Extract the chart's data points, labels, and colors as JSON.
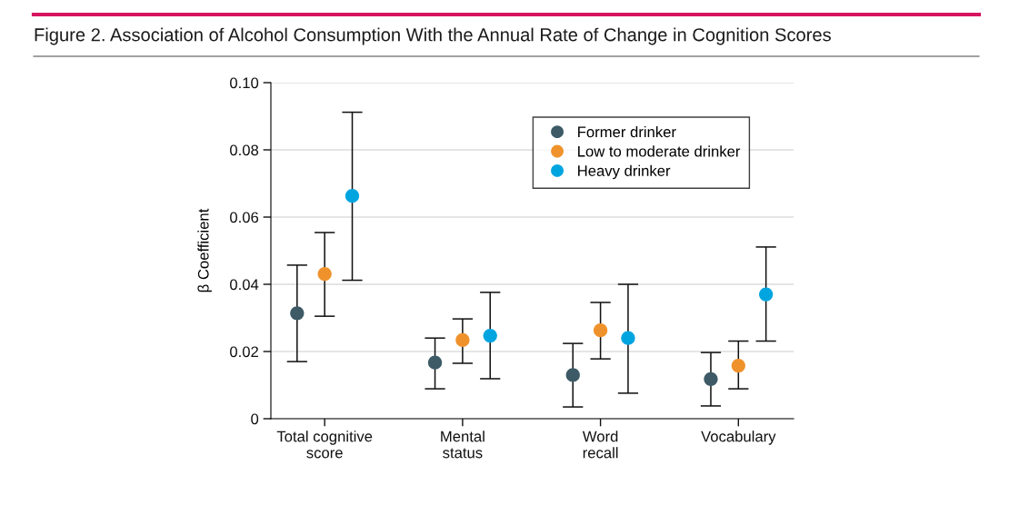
{
  "chart_data": {
    "type": "scatter",
    "title": "Figure 2. Association of Alcohol Consumption With the Annual Rate of Change in Cognition Scores",
    "ylabel": "β Coefficient",
    "categories": [
      "Total cognitive\nscore",
      "Mental\nstatus",
      "Word\nrecall",
      "Vocabulary"
    ],
    "series": [
      {
        "name": "Former drinker",
        "color": "#3d5a66",
        "values": [
          0.0314,
          0.0167,
          0.013,
          0.0118
        ],
        "errors": [
          [
            0.017,
            0.0457
          ],
          [
            0.0089,
            0.024
          ],
          [
            0.0035,
            0.0224
          ],
          [
            0.0038,
            0.0197
          ]
        ]
      },
      {
        "name": "Low to moderate drinker",
        "color": "#f0922b",
        "values": [
          0.0431,
          0.0234,
          0.0263,
          0.0158
        ],
        "errors": [
          [
            0.0305,
            0.0554
          ],
          [
            0.0165,
            0.0297
          ],
          [
            0.0178,
            0.0346
          ],
          [
            0.0089,
            0.0231
          ]
        ]
      },
      {
        "name": "Heavy drinker",
        "color": "#00a5e0",
        "values": [
          0.0663,
          0.0247,
          0.024,
          0.037
        ],
        "errors": [
          [
            0.0412,
            0.0912
          ],
          [
            0.0119,
            0.0376
          ],
          [
            0.0076,
            0.04
          ],
          [
            0.0231,
            0.0511
          ]
        ]
      }
    ],
    "ylim": [
      0,
      0.1
    ],
    "yticks": [
      0,
      {
        "value": 0.02,
        "label": "0.02"
      },
      {
        "value": 0.04,
        "label": "0.04"
      },
      {
        "value": 0.06,
        "label": "0.06"
      },
      {
        "value": 0.08,
        "label": "0.08"
      },
      {
        "value": 0.1,
        "label": "0.10"
      }
    ],
    "grid": "y",
    "legend": "top right",
    "marker": "circle"
  }
}
